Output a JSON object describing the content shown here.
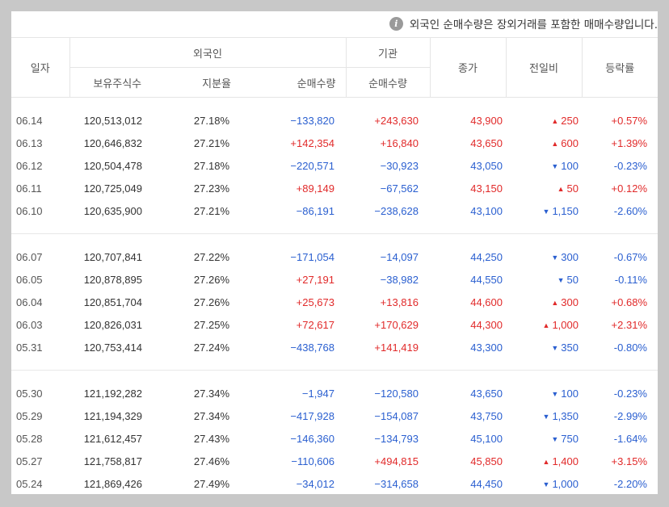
{
  "notice": {
    "icon": "info-icon",
    "text": "외국인 순매수량은 장외거래를 포함한 매매수량입니다."
  },
  "headers": {
    "date": "일자",
    "foreign": "외국인",
    "institution": "기관",
    "close": "종가",
    "change": "전일비",
    "rate": "등락률",
    "holdings": "보유주식수",
    "ratio": "지분율",
    "foreign_net": "순매수량",
    "inst_net": "순매수량"
  },
  "colors": {
    "up": "#e12a2a",
    "down": "#2a5fd0"
  },
  "groups": [
    [
      {
        "date": "06.14",
        "holdings": "120,513,012",
        "ratio": "27.18%",
        "foreign_net": "−133,820",
        "inst_net": "+243,630",
        "close": "43,900",
        "change": "250",
        "dir": "up",
        "rate": "+0.57%"
      },
      {
        "date": "06.13",
        "holdings": "120,646,832",
        "ratio": "27.21%",
        "foreign_net": "+142,354",
        "inst_net": "+16,840",
        "close": "43,650",
        "change": "600",
        "dir": "up",
        "rate": "+1.39%"
      },
      {
        "date": "06.12",
        "holdings": "120,504,478",
        "ratio": "27.18%",
        "foreign_net": "−220,571",
        "inst_net": "−30,923",
        "close": "43,050",
        "change": "100",
        "dir": "down",
        "rate": "-0.23%"
      },
      {
        "date": "06.11",
        "holdings": "120,725,049",
        "ratio": "27.23%",
        "foreign_net": "+89,149",
        "inst_net": "−67,562",
        "close": "43,150",
        "change": "50",
        "dir": "up",
        "rate": "+0.12%"
      },
      {
        "date": "06.10",
        "holdings": "120,635,900",
        "ratio": "27.21%",
        "foreign_net": "−86,191",
        "inst_net": "−238,628",
        "close": "43,100",
        "change": "1,150",
        "dir": "down",
        "rate": "-2.60%"
      }
    ],
    [
      {
        "date": "06.07",
        "holdings": "120,707,841",
        "ratio": "27.22%",
        "foreign_net": "−171,054",
        "inst_net": "−14,097",
        "close": "44,250",
        "change": "300",
        "dir": "down",
        "rate": "-0.67%"
      },
      {
        "date": "06.05",
        "holdings": "120,878,895",
        "ratio": "27.26%",
        "foreign_net": "+27,191",
        "inst_net": "−38,982",
        "close": "44,550",
        "change": "50",
        "dir": "down",
        "rate": "-0.11%"
      },
      {
        "date": "06.04",
        "holdings": "120,851,704",
        "ratio": "27.26%",
        "foreign_net": "+25,673",
        "inst_net": "+13,816",
        "close": "44,600",
        "change": "300",
        "dir": "up",
        "rate": "+0.68%"
      },
      {
        "date": "06.03",
        "holdings": "120,826,031",
        "ratio": "27.25%",
        "foreign_net": "+72,617",
        "inst_net": "+170,629",
        "close": "44,300",
        "change": "1,000",
        "dir": "up",
        "rate": "+2.31%"
      },
      {
        "date": "05.31",
        "holdings": "120,753,414",
        "ratio": "27.24%",
        "foreign_net": "−438,768",
        "inst_net": "+141,419",
        "close": "43,300",
        "change": "350",
        "dir": "down",
        "rate": "-0.80%"
      }
    ],
    [
      {
        "date": "05.30",
        "holdings": "121,192,282",
        "ratio": "27.34%",
        "foreign_net": "−1,947",
        "inst_net": "−120,580",
        "close": "43,650",
        "change": "100",
        "dir": "down",
        "rate": "-0.23%"
      },
      {
        "date": "05.29",
        "holdings": "121,194,329",
        "ratio": "27.34%",
        "foreign_net": "−417,928",
        "inst_net": "−154,087",
        "close": "43,750",
        "change": "1,350",
        "dir": "down",
        "rate": "-2.99%"
      },
      {
        "date": "05.28",
        "holdings": "121,612,457",
        "ratio": "27.43%",
        "foreign_net": "−146,360",
        "inst_net": "−134,793",
        "close": "45,100",
        "change": "750",
        "dir": "down",
        "rate": "-1.64%"
      },
      {
        "date": "05.27",
        "holdings": "121,758,817",
        "ratio": "27.46%",
        "foreign_net": "−110,606",
        "inst_net": "+494,815",
        "close": "45,850",
        "change": "1,400",
        "dir": "up",
        "rate": "+3.15%"
      },
      {
        "date": "05.24",
        "holdings": "121,869,426",
        "ratio": "27.49%",
        "foreign_net": "−34,012",
        "inst_net": "−314,658",
        "close": "44,450",
        "change": "1,000",
        "dir": "down",
        "rate": "-2.20%"
      }
    ]
  ]
}
